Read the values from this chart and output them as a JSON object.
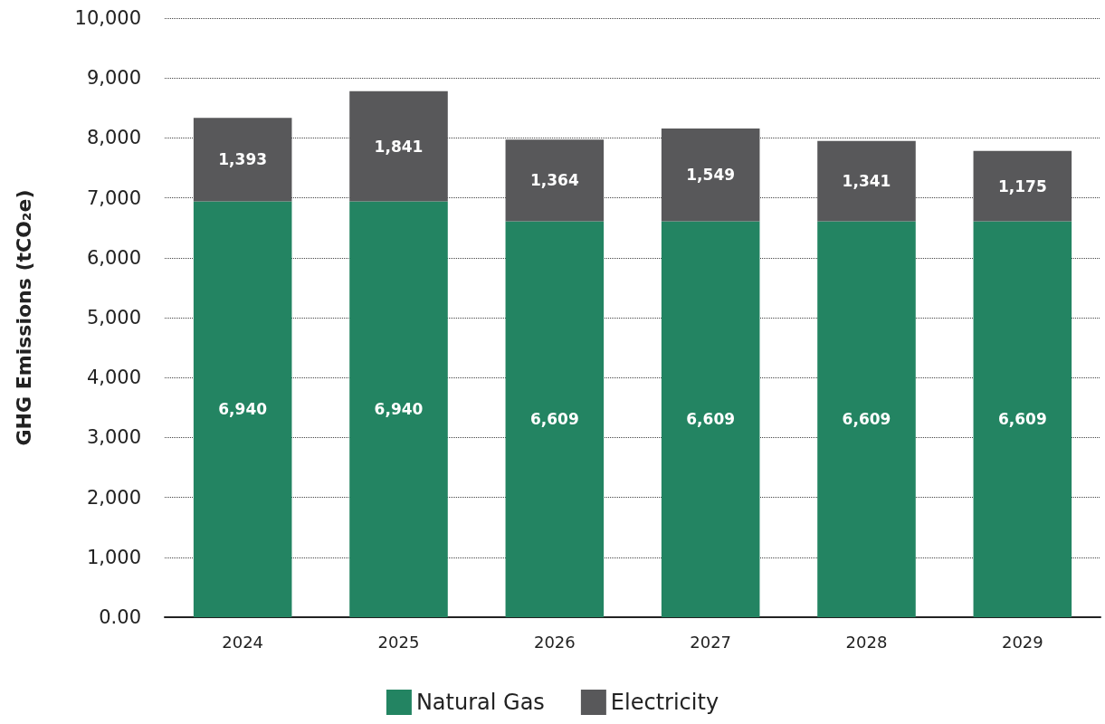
{
  "chart_data": {
    "type": "bar",
    "stacked": true,
    "ylabel": "GHG Emissions (tCO₂e)",
    "categories": [
      "2024",
      "2025",
      "2026",
      "2027",
      "2028",
      "2029"
    ],
    "series": [
      {
        "name": "Natural Gas",
        "color": "#238462",
        "values": [
          6940,
          6940,
          6609,
          6609,
          6609,
          6609
        ],
        "value_labels": [
          "6,940",
          "6,940",
          "6,609",
          "6,609",
          "6,609",
          "6,609"
        ]
      },
      {
        "name": "Electricity",
        "color": "#58585a",
        "values": [
          1393,
          1841,
          1364,
          1549,
          1341,
          1175
        ],
        "value_labels": [
          "1,393",
          "1,841",
          "1,364",
          "1,549",
          "1,341",
          "1,175"
        ]
      }
    ],
    "ylim": [
      0,
      10000
    ],
    "yticks": [
      {
        "value": 0,
        "label": "0.00"
      },
      {
        "value": 1000,
        "label": "1,000"
      },
      {
        "value": 2000,
        "label": "2,000"
      },
      {
        "value": 3000,
        "label": "3,000"
      },
      {
        "value": 4000,
        "label": "4,000"
      },
      {
        "value": 5000,
        "label": "5,000"
      },
      {
        "value": 6000,
        "label": "6,000"
      },
      {
        "value": 7000,
        "label": "7,000"
      },
      {
        "value": 8000,
        "label": "8,000"
      },
      {
        "value": 9000,
        "label": "9,000"
      },
      {
        "value": 10000,
        "label": "10,000"
      }
    ],
    "grid": "y",
    "legend": "bottom"
  }
}
